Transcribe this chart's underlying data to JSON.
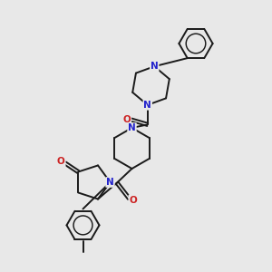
{
  "bg_color": "#e8e8e8",
  "bond_color": "#1a1a1a",
  "N_color": "#2222cc",
  "O_color": "#cc2222",
  "bond_width": 1.4,
  "figsize": [
    3.0,
    3.0
  ],
  "dpi": 100,
  "xlim": [
    0,
    10
  ],
  "ylim": [
    0,
    10
  ]
}
